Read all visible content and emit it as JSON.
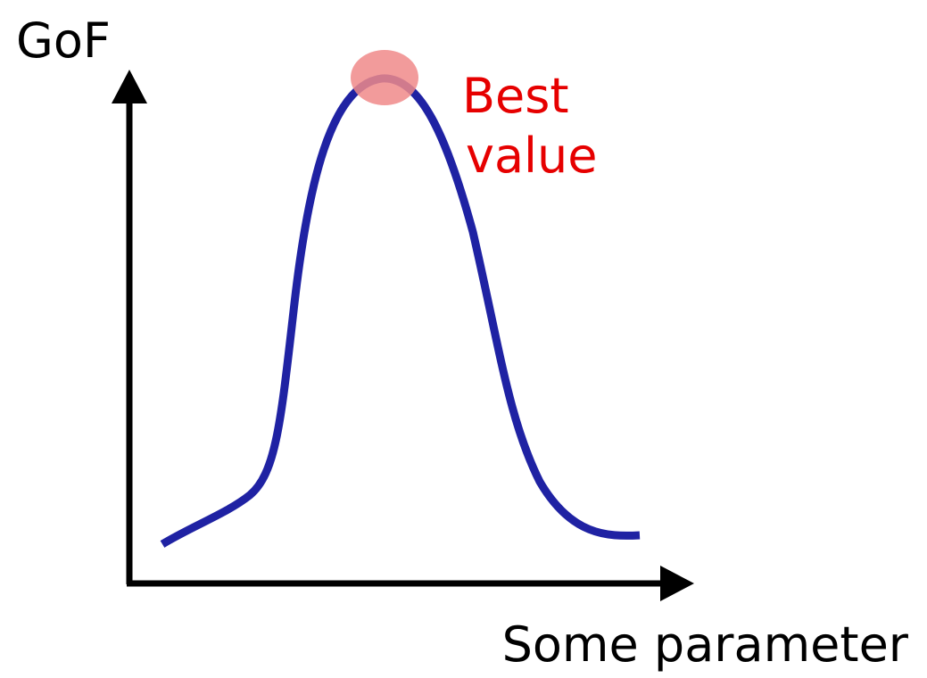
{
  "diagram": {
    "y_axis_label": "GoF",
    "x_axis_label": "Some parameter",
    "annotation": {
      "line1": "Best",
      "line2": "value"
    }
  },
  "colors": {
    "axis": "#000000",
    "curve": "#1f22a3",
    "highlight": "#f08a8a",
    "annotation": "#e60000",
    "label": "#000000"
  }
}
